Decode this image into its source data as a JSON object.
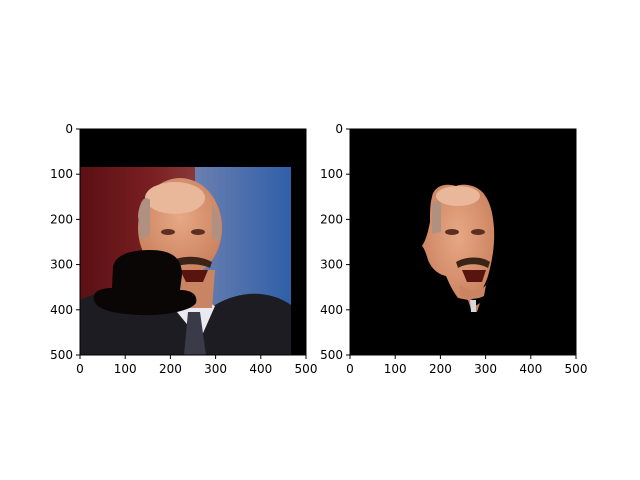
{
  "figure": {
    "background": "#ffffff"
  },
  "chart_data": [
    {
      "type": "image",
      "title": "",
      "xlabel": "",
      "ylabel": "",
      "xlim": [
        0,
        500
      ],
      "ylim": [
        500,
        0
      ],
      "xticks": [
        0,
        100,
        200,
        300,
        400,
        500
      ],
      "yticks": [
        0,
        100,
        200,
        300,
        400,
        500
      ],
      "content": "photograph of a man speaking with a black bowler-hat shape pasted over the lower face area",
      "colors": {
        "frame": "#000000",
        "background_left": "#6b1a1a",
        "background_right": "#3f6fae",
        "hat": "#0b0606"
      }
    },
    {
      "type": "image",
      "title": "",
      "xlabel": "",
      "ylabel": "",
      "xlim": [
        0,
        500
      ],
      "ylim": [
        500,
        0
      ],
      "xticks": [
        0,
        100,
        200,
        300,
        400,
        500
      ],
      "yticks": [
        0,
        100,
        200,
        300,
        400,
        500
      ],
      "content": "segmented face region on a black background",
      "colors": {
        "background": "#000000",
        "skin": "#d9966c"
      }
    }
  ]
}
